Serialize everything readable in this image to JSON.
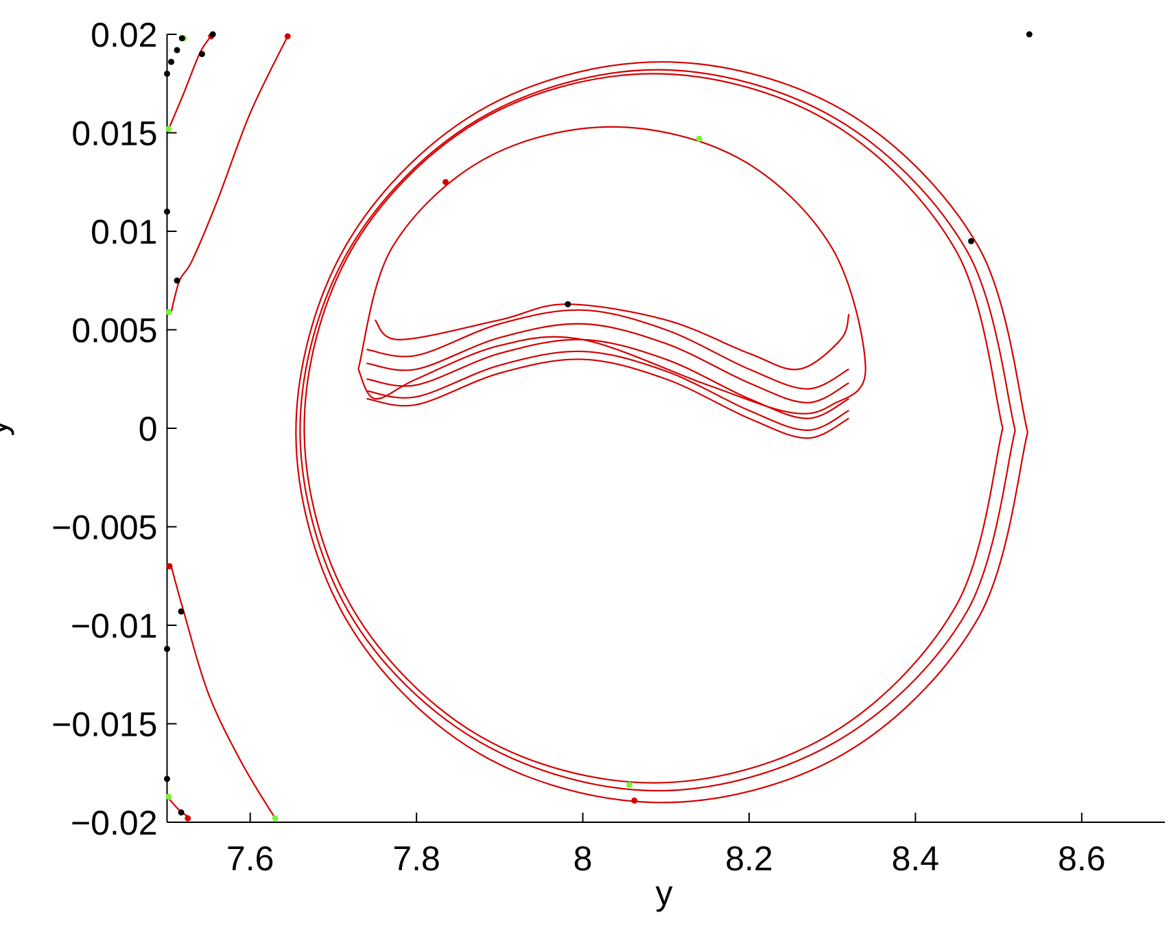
{
  "chart_data": {
    "type": "line",
    "xlabel": "y",
    "ylabel": "ẏ",
    "xlim": [
      7.5,
      8.7
    ],
    "ylim": [
      -0.02,
      0.02
    ],
    "xticks": [
      7.6,
      7.8,
      8,
      8.2,
      8.4,
      8.6
    ],
    "yticks": [
      {
        "value": -0.02,
        "label": "−0.02"
      },
      {
        "value": -0.015,
        "label": "−0.015"
      },
      {
        "value": -0.01,
        "label": "−0.01"
      },
      {
        "value": -0.005,
        "label": "−0.005"
      },
      0,
      0.005,
      0.01,
      0.015,
      0.02
    ],
    "series": [
      {
        "color": "#d40000",
        "x": [
          8.535,
          8.476,
          8.315,
          8.095,
          7.875,
          7.714,
          7.655,
          7.714,
          7.875,
          8.095,
          8.315,
          8.476,
          8.535
        ],
        "y": [
          -0.0002,
          0.0092,
          0.0161,
          0.0186,
          0.0161,
          0.0092,
          -0.0002,
          -0.0096,
          -0.0165,
          -0.019,
          -0.0165,
          -0.0096,
          -0.0002
        ]
      },
      {
        "color": "#d40000",
        "x": [
          8.52,
          8.462,
          8.305,
          8.09,
          7.875,
          7.718,
          7.66,
          7.718,
          7.875,
          8.09,
          8.305,
          8.462,
          8.52
        ],
        "y": [
          -0.0001,
          0.009,
          0.0157,
          0.0182,
          0.0157,
          0.009,
          -0.0001,
          -0.0093,
          -0.0159,
          -0.0184,
          -0.0159,
          -0.0093,
          -0.0001
        ]
      },
      {
        "color": "#d40000",
        "x": [
          8.505,
          8.449,
          8.295,
          8.085,
          7.875,
          7.721,
          7.665,
          7.721,
          7.875,
          8.085,
          8.295,
          8.449,
          8.505
        ],
        "y": [
          0,
          0.009,
          0.0156,
          0.018,
          0.0156,
          0.009,
          0,
          -0.009,
          -0.0156,
          -0.018,
          -0.0156,
          -0.009,
          0
        ]
      },
      {
        "color": "#d40000",
        "x": [
          7.73,
          7.771,
          7.883,
          8.035,
          8.188,
          8.299,
          8.34,
          8.3,
          8.25,
          8.15,
          8.0,
          7.9,
          7.8,
          7.75,
          7.73
        ],
        "y": [
          0.003,
          0.0092,
          0.0137,
          0.0153,
          0.0137,
          0.0092,
          0.003,
          0.0012,
          0.0008,
          0.0022,
          0.0045,
          0.0042,
          0.0025,
          0.0015,
          0.003
        ]
      },
      {
        "color": "#d40000",
        "x": [
          7.75,
          7.78,
          7.9,
          7.98,
          8.1,
          8.2,
          8.26,
          8.31,
          8.32
        ],
        "y": [
          0.0055,
          0.0045,
          0.0055,
          0.0063,
          0.0055,
          0.0038,
          0.003,
          0.0045,
          0.0058
        ]
      },
      {
        "color": "#d40000",
        "x": [
          7.74,
          7.8,
          7.9,
          8.0,
          8.1,
          8.2,
          8.27,
          8.32
        ],
        "y": [
          0.004,
          0.0037,
          0.0053,
          0.006,
          0.005,
          0.003,
          0.002,
          0.003
        ]
      },
      {
        "color": "#d40000",
        "x": [
          7.74,
          7.8,
          7.9,
          8.0,
          8.1,
          8.2,
          8.27,
          8.32
        ],
        "y": [
          0.0033,
          0.003,
          0.0046,
          0.0053,
          0.0043,
          0.0023,
          0.0013,
          0.0023
        ]
      },
      {
        "color": "#d40000",
        "x": [
          7.74,
          7.8,
          7.9,
          8.0,
          8.1,
          8.2,
          8.27,
          8.32
        ],
        "y": [
          0.0025,
          0.0022,
          0.0038,
          0.0045,
          0.0035,
          0.0015,
          0.0005,
          0.0015
        ]
      },
      {
        "color": "#d40000",
        "x": [
          7.74,
          7.8,
          7.9,
          8.0,
          8.1,
          8.2,
          8.27,
          8.32
        ],
        "y": [
          0.0019,
          0.0016,
          0.0032,
          0.0039,
          0.0029,
          0.0009,
          -0.0001,
          0.0009
        ]
      },
      {
        "color": "#d40000",
        "x": [
          7.74,
          7.8,
          7.9,
          8.0,
          8.1,
          8.2,
          8.27,
          8.32
        ],
        "y": [
          0.0015,
          0.0012,
          0.0028,
          0.0035,
          0.0025,
          0.0005,
          -0.0005,
          0.0005
        ]
      },
      {
        "color": "#d40000",
        "x": [
          7.645,
          7.6,
          7.56,
          7.53,
          7.515,
          7.505
        ],
        "y": [
          0.0199,
          0.016,
          0.0115,
          0.0085,
          0.0075,
          0.0059
        ]
      },
      {
        "color": "#d40000",
        "x": [
          7.555,
          7.54,
          7.52,
          7.502
        ],
        "y": [
          0.02,
          0.0191,
          0.017,
          0.0152
        ]
      },
      {
        "color": "#d40000",
        "x": [
          7.505,
          7.52,
          7.55,
          7.59,
          7.63
        ],
        "y": [
          -0.007,
          -0.0093,
          -0.0135,
          -0.017,
          -0.0198
        ]
      },
      {
        "color": "#d40000",
        "x": [
          7.5,
          7.515,
          7.525
        ],
        "y": [
          -0.0187,
          -0.0194,
          -0.0197
        ]
      }
    ],
    "markers": [
      {
        "color": "#7cf03c",
        "x": [
          7.52,
          7.502,
          7.502,
          8.14,
          8.056,
          7.502,
          7.63
        ],
        "y": [
          0.0198,
          0.0152,
          0.0059,
          0.0147,
          -0.0181,
          -0.0187,
          -0.0198
        ]
      },
      {
        "color": "#d40000",
        "x": [
          7.645,
          7.553,
          7.835,
          8.062,
          7.503,
          7.525
        ],
        "y": [
          0.0199,
          0.0199,
          0.0125,
          -0.0189,
          -0.007,
          -0.0198
        ]
      },
      {
        "color": "#000000",
        "x": [
          7.518,
          7.555,
          7.512,
          7.505,
          7.5,
          7.542,
          7.5,
          7.512,
          7.982,
          8.467,
          8.537,
          7.517,
          7.5,
          7.5,
          7.517
        ],
        "y": [
          0.0198,
          0.02,
          0.0192,
          0.0186,
          0.018,
          0.019,
          0.011,
          0.0075,
          0.0063,
          0.0095,
          0.02,
          -0.0093,
          -0.0112,
          -0.0178,
          -0.0195
        ]
      }
    ]
  }
}
